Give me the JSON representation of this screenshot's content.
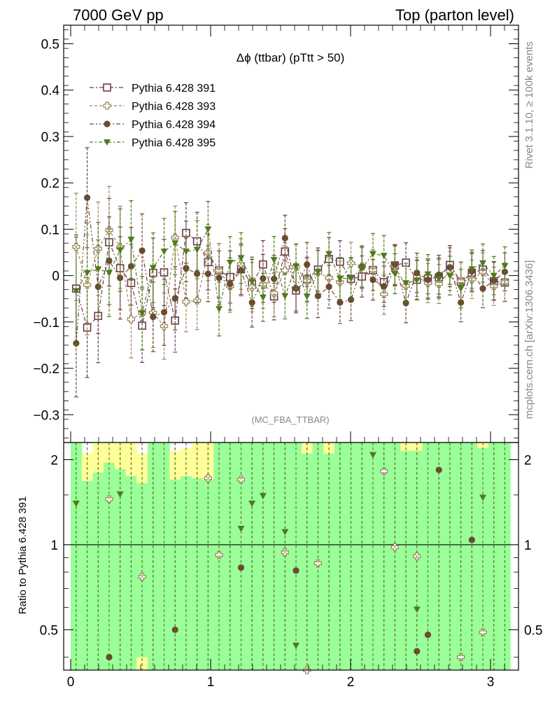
{
  "header": {
    "left": "7000 GeV pp",
    "right": "Top (parton level)"
  },
  "side_labels": {
    "rivet": "Rivet 3.1.10, ≥ 100k events",
    "mcplots": "mcplots.cern.ch [arXiv:1306.3436]"
  },
  "chart_data": [
    {
      "type": "scatter",
      "title": "Δϕ (ttbar) (pTtt > 50)",
      "analysis_label": "(MC_FBA_TTBAR)",
      "xlim": [
        -0.05,
        3.2
      ],
      "ylim": [
        -0.36,
        0.54
      ],
      "yticks": [
        "−0.3",
        "−0.2",
        "−0.1",
        "0",
        "0.1",
        "0.2",
        "0.3",
        "0.4",
        "0.5"
      ],
      "legend_position": "top-left",
      "grid": false,
      "x": [
        0.0393,
        0.1178,
        0.1963,
        0.2749,
        0.3534,
        0.432,
        0.5105,
        0.589,
        0.6676,
        0.7461,
        0.8247,
        0.9032,
        0.9817,
        1.0603,
        1.1388,
        1.2174,
        1.2959,
        1.3744,
        1.453,
        1.5315,
        1.6101,
        1.6886,
        1.7671,
        1.8457,
        1.9242,
        2.0028,
        2.0813,
        2.1598,
        2.2384,
        2.3169,
        2.3955,
        2.474,
        2.5525,
        2.6311,
        2.7096,
        2.7882,
        2.8667,
        2.9452,
        3.0238,
        3.1023
      ],
      "series": [
        {
          "name": "Pythia 6.428 391",
          "color": "#6b3a57",
          "marker": "open-square",
          "values": [
            -0.028,
            -0.112,
            -0.087,
            0.072,
            0.016,
            -0.016,
            -0.108,
            0.006,
            0.007,
            -0.097,
            0.092,
            0.074,
            0.029,
            0.011,
            -0.003,
            0.014,
            -0.018,
            0.024,
            -0.045,
            0.052,
            -0.032,
            -0.008,
            0.013,
            0.036,
            0.03,
            -0.007,
            -0.002,
            0.012,
            -0.014,
            0.022,
            0.028,
            -0.009,
            -0.006,
            -0.004,
            0.023,
            -0.013,
            0.006,
            0.013,
            -0.012,
            -0.015
          ]
        },
        {
          "name": "Pythia 6.428 393",
          "color": "#9e8a5c",
          "marker": "open-cross",
          "values": [
            0.062,
            -0.02,
            0.058,
            0.098,
            0.061,
            -0.094,
            -0.081,
            -0.08,
            -0.109,
            0.082,
            -0.056,
            -0.054,
            0.05,
            0.011,
            -0.023,
            0.025,
            -0.025,
            -0.019,
            -0.038,
            0.011,
            0.019,
            -0.011,
            0.007,
            -0.005,
            -0.014,
            0.027,
            0.02,
            0.012,
            -0.04,
            0.02,
            -0.022,
            -0.003,
            -0.016,
            -0.018,
            0.01,
            -0.012,
            -0.008,
            0.008,
            -0.023,
            -0.014
          ]
        },
        {
          "name": "Pythia 6.428 394",
          "color": "#6b4a30",
          "marker": "filled-circle",
          "values": [
            -0.146,
            0.168,
            -0.024,
            0.032,
            -0.005,
            0.02,
            0.054,
            -0.089,
            -0.079,
            -0.049,
            0.016,
            0.004,
            0.004,
            -0.005,
            -0.018,
            0.011,
            -0.058,
            -0.006,
            -0.007,
            0.081,
            -0.028,
            0.024,
            -0.044,
            -0.024,
            -0.058,
            -0.052,
            0.019,
            -0.009,
            -0.023,
            0.024,
            -0.059,
            0.006,
            -0.009,
            0.002,
            0.018,
            -0.058,
            0.009,
            -0.028,
            -0.011,
            0.008
          ]
        },
        {
          "name": "Pythia 6.428 395",
          "color": "#4f7a1a",
          "marker": "filled-triangle-down",
          "values": [
            -0.033,
            0.006,
            0.014,
            0.006,
            0.055,
            0.078,
            -0.081,
            0.017,
            0.052,
            0.07,
            0.052,
            0.056,
            0.1,
            -0.072,
            0.028,
            0.038,
            -0.013,
            -0.047,
            0.034,
            -0.044,
            0.02,
            -0.045,
            0.008,
            0.047,
            -0.006,
            -0.006,
            0.016,
            0.047,
            0.043,
            0.004,
            -0.016,
            -0.01,
            0.003,
            -0.007,
            0.0,
            -0.028,
            0.014,
            0.027,
            0.0,
            0.021
          ]
        }
      ]
    },
    {
      "type": "scatter",
      "ylabel": "Ratio to Pythia 6.428 391",
      "xlim": [
        -0.05,
        3.2
      ],
      "ylim": [
        0.36,
        2.3
      ],
      "log_y": true,
      "yticks": [
        "0.5",
        "1",
        "2"
      ],
      "xticks": [
        "0",
        "1",
        "2",
        "3"
      ],
      "reference_line": 1,
      "band_colors": {
        "inner": "#99ff99",
        "outer": "#ffff99"
      },
      "x": [
        0.0393,
        0.1178,
        0.1963,
        0.2749,
        0.3534,
        0.432,
        0.5105,
        0.589,
        0.6676,
        0.7461,
        0.8247,
        0.9032,
        0.9817,
        1.0603,
        1.1388,
        1.2174,
        1.2959,
        1.3744,
        1.453,
        1.5315,
        1.6101,
        1.6886,
        1.7671,
        1.8457,
        1.9242,
        2.0028,
        2.0813,
        2.1598,
        2.2384,
        2.3169,
        2.3955,
        2.474,
        2.5525,
        2.6311,
        2.7096,
        2.7882,
        2.8667,
        2.9452,
        3.0238,
        3.1023
      ],
      "band_outer_low": [
        0.3,
        0.3,
        0.3,
        0.3,
        0.3,
        0.3,
        0.4,
        0.3,
        0.3,
        0.3,
        0.3,
        0.3,
        0.3,
        0.3,
        0.3,
        0.3,
        0.3,
        0.3,
        0.3,
        0.3,
        0.3,
        0.3,
        0.3,
        0.3,
        0.3,
        0.3,
        0.3,
        0.3,
        0.3,
        0.3,
        0.3,
        0.3,
        0.3,
        0.3,
        0.3,
        0.3,
        0.3,
        0.3,
        0.3,
        0.3
      ],
      "band_outer_high": [
        2.3,
        2.1,
        2.3,
        2.3,
        2.3,
        2.3,
        2.1,
        2.3,
        2.3,
        2.15,
        2.2,
        2.3,
        2.3,
        2.3,
        2.3,
        2.3,
        2.3,
        2.3,
        2.3,
        2.3,
        2.3,
        2.3,
        2.3,
        2.3,
        2.3,
        2.3,
        2.3,
        2.3,
        2.3,
        2.3,
        2.3,
        2.3,
        2.3,
        2.3,
        2.3,
        2.3,
        2.3,
        2.3,
        2.3,
        2.3
      ],
      "band_inner_high": [
        2.3,
        1.68,
        1.8,
        1.95,
        1.85,
        1.75,
        1.65,
        2.3,
        2.3,
        1.7,
        1.75,
        1.72,
        1.7,
        2.3,
        2.3,
        2.3,
        2.3,
        2.3,
        2.3,
        2.3,
        2.3,
        2.1,
        2.3,
        2.1,
        2.3,
        2.3,
        2.3,
        2.3,
        2.3,
        2.3,
        2.15,
        2.15,
        2.3,
        2.3,
        2.3,
        2.3,
        2.3,
        2.2,
        2.3,
        2.3
      ],
      "series": [
        {
          "name": "Pythia 6.428 393",
          "points": [
            [
              0.2749,
              1.45
            ],
            [
              0.5105,
              0.77
            ],
            [
              0.9817,
              1.72
            ],
            [
              1.0603,
              0.92
            ],
            [
              1.2174,
              1.7
            ],
            [
              1.5315,
              0.94
            ],
            [
              1.6886,
              0.36
            ],
            [
              1.7671,
              0.86
            ],
            [
              2.2384,
              1.82
            ],
            [
              2.3169,
              0.98
            ],
            [
              2.474,
              0.91
            ],
            [
              2.7882,
              0.4
            ],
            [
              2.9452,
              0.49
            ]
          ]
        },
        {
          "name": "Pythia 6.428 394",
          "points": [
            [
              0.2749,
              0.4
            ],
            [
              0.7461,
              0.5
            ],
            [
              1.2174,
              0.83
            ],
            [
              1.6101,
              0.81
            ],
            [
              2.474,
              0.42
            ],
            [
              2.5525,
              0.48
            ],
            [
              2.6311,
              1.84
            ],
            [
              2.8667,
              1.04
            ]
          ]
        },
        {
          "name": "Pythia 6.428 395",
          "points": [
            [
              0.0393,
              1.4
            ],
            [
              0.3534,
              1.51
            ],
            [
              1.2174,
              1.14
            ],
            [
              1.2959,
              1.4
            ],
            [
              1.3744,
              1.49
            ],
            [
              1.5315,
              1.11
            ],
            [
              1.6101,
              0.44
            ],
            [
              2.1598,
              2.08
            ],
            [
              2.474,
              0.59
            ],
            [
              2.9452,
              1.47
            ]
          ]
        }
      ]
    }
  ]
}
